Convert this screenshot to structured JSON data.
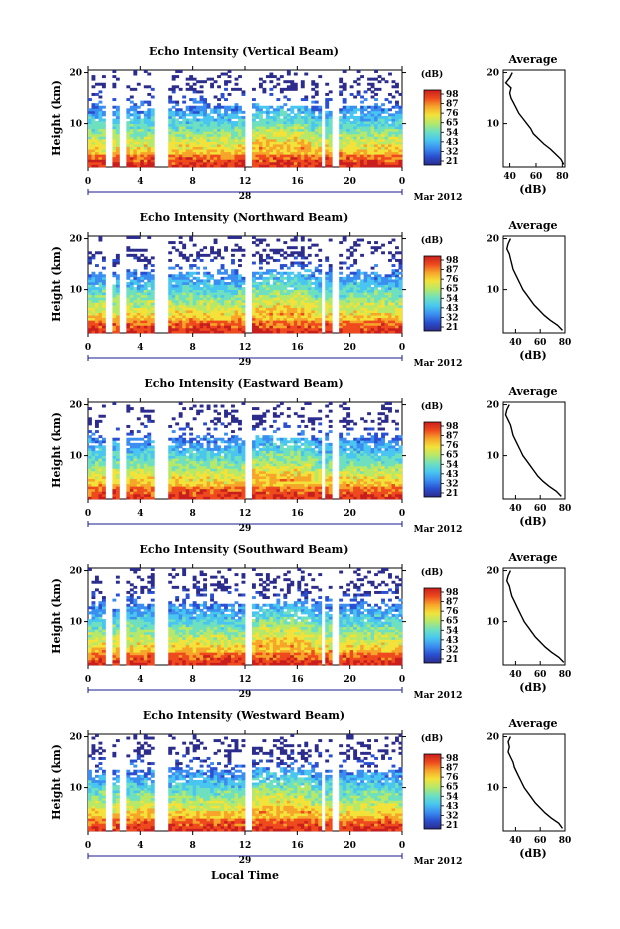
{
  "colorbar_unit": "(dB)",
  "colorbar_colors": [
    "#2c2c8c",
    "#2a4fd0",
    "#3b8ef0",
    "#49c6f0",
    "#6ee0c0",
    "#b6e86a",
    "#f2e23a",
    "#f7a52a",
    "#ee4a1e",
    "#c81e1e"
  ],
  "time_label": "Local Time",
  "month_label": "Mar 2012",
  "chart_data": [
    {
      "type": "heatmap",
      "title": "Echo Intensity (Vertical Beam)",
      "ylabel": "Height (km)",
      "x_ticks": [
        "0",
        "4",
        "8",
        "12",
        "16",
        "20",
        "0"
      ],
      "y_ticks": [
        "20",
        "10"
      ],
      "day_label": "28",
      "xlim": [
        0,
        24
      ],
      "ylim": [
        1.5,
        20.5
      ],
      "colorbar_ticks": [
        "98",
        "87",
        "76",
        "65",
        "54",
        "43",
        "32",
        "21"
      ],
      "profile": {
        "title": "Average",
        "xlabel": "(dB)",
        "x_ticks": [
          "40",
          "60",
          "80"
        ],
        "y_ticks": [
          "20",
          "10"
        ],
        "xlim": [
          35,
          82
        ],
        "height_km": [
          20,
          19,
          18,
          17,
          16,
          15,
          14,
          13,
          12,
          11,
          10,
          9,
          8,
          7,
          6,
          5,
          4,
          3,
          2
        ],
        "mean_db": [
          42,
          40,
          37,
          41,
          40,
          41,
          43,
          45,
          47,
          50,
          53,
          56,
          58,
          62,
          66,
          71,
          75,
          79,
          81
        ]
      }
    },
    {
      "type": "heatmap",
      "title": "Echo Intensity (Northward Beam)",
      "ylabel": "Height (km)",
      "x_ticks": [
        "0",
        "4",
        "8",
        "12",
        "16",
        "20",
        "0"
      ],
      "y_ticks": [
        "20",
        "10"
      ],
      "day_label": "29",
      "xlim": [
        0,
        24
      ],
      "ylim": [
        1.5,
        20.5
      ],
      "colorbar_ticks": [
        "98",
        "87",
        "76",
        "65",
        "54",
        "43",
        "32",
        "21"
      ],
      "profile": {
        "title": "Average",
        "xlabel": "(dB)",
        "x_ticks": [
          "40",
          "60",
          "80"
        ],
        "y_ticks": [
          "20",
          "10"
        ],
        "xlim": [
          30,
          80
        ],
        "height_km": [
          20,
          19,
          18,
          17,
          16,
          15,
          14,
          13,
          12,
          11,
          10,
          9,
          8,
          7,
          6,
          5,
          4,
          3,
          2
        ],
        "mean_db": [
          36,
          34,
          33,
          35,
          36,
          37,
          38,
          40,
          42,
          44,
          46,
          49,
          52,
          55,
          59,
          63,
          68,
          74,
          78
        ]
      }
    },
    {
      "type": "heatmap",
      "title": "Echo Intensity (Eastward Beam)",
      "ylabel": "Height (km)",
      "x_ticks": [
        "0",
        "4",
        "8",
        "12",
        "16",
        "20",
        "0"
      ],
      "y_ticks": [
        "20",
        "10"
      ],
      "day_label": "29",
      "xlim": [
        0,
        24
      ],
      "ylim": [
        1.5,
        20.5
      ],
      "colorbar_ticks": [
        "98",
        "87",
        "76",
        "65",
        "54",
        "43",
        "32",
        "21"
      ],
      "profile": {
        "title": "Average",
        "xlabel": "(dB)",
        "x_ticks": [
          "40",
          "60",
          "80"
        ],
        "y_ticks": [
          "20",
          "10"
        ],
        "xlim": [
          30,
          80
        ],
        "height_km": [
          20,
          19,
          18,
          17,
          16,
          15,
          14,
          13,
          12,
          11,
          10,
          9,
          8,
          7,
          6,
          5,
          4,
          3,
          2
        ],
        "mean_db": [
          35,
          33,
          32,
          34,
          36,
          37,
          38,
          40,
          42,
          44,
          46,
          49,
          52,
          55,
          58,
          62,
          67,
          73,
          77
        ]
      }
    },
    {
      "type": "heatmap",
      "title": "Echo Intensity (Southward Beam)",
      "ylabel": "Height (km)",
      "x_ticks": [
        "0",
        "4",
        "8",
        "12",
        "16",
        "20",
        "0"
      ],
      "y_ticks": [
        "20",
        "10"
      ],
      "day_label": "29",
      "xlim": [
        0,
        24
      ],
      "ylim": [
        1.5,
        20.5
      ],
      "colorbar_ticks": [
        "98",
        "87",
        "76",
        "65",
        "54",
        "43",
        "32",
        "21"
      ],
      "profile": {
        "title": "Average",
        "xlabel": "(dB)",
        "x_ticks": [
          "40",
          "60",
          "80"
        ],
        "y_ticks": [
          "20",
          "10"
        ],
        "xlim": [
          30,
          80
        ],
        "height_km": [
          20,
          19,
          18,
          17,
          16,
          15,
          14,
          13,
          12,
          11,
          10,
          9,
          8,
          7,
          6,
          5,
          4,
          3,
          2
        ],
        "mean_db": [
          36,
          34,
          33,
          35,
          36,
          37,
          39,
          41,
          43,
          45,
          47,
          50,
          53,
          56,
          60,
          64,
          69,
          75,
          79
        ]
      }
    },
    {
      "type": "heatmap",
      "title": "Echo Intensity (Westward Beam)",
      "ylabel": "Height (km)",
      "x_ticks": [
        "0",
        "4",
        "8",
        "12",
        "16",
        "20",
        "0"
      ],
      "y_ticks": [
        "20",
        "10"
      ],
      "day_label": "29",
      "xlim": [
        0,
        24
      ],
      "ylim": [
        1.5,
        20.5
      ],
      "colorbar_ticks": [
        "98",
        "87",
        "76",
        "65",
        "54",
        "43",
        "32",
        "21"
      ],
      "profile": {
        "title": "Average",
        "xlabel": "(dB)",
        "x_ticks": [
          "40",
          "60",
          "80"
        ],
        "y_ticks": [
          "20",
          "10"
        ],
        "xlim": [
          30,
          80
        ],
        "height_km": [
          20,
          19,
          18,
          17,
          16,
          15,
          14,
          13,
          12,
          11,
          10,
          9,
          8,
          7,
          6,
          5,
          4,
          3,
          2
        ],
        "mean_db": [
          36,
          34,
          35,
          34,
          36,
          38,
          39,
          41,
          43,
          45,
          47,
          50,
          53,
          56,
          60,
          64,
          69,
          75,
          78
        ]
      }
    }
  ]
}
